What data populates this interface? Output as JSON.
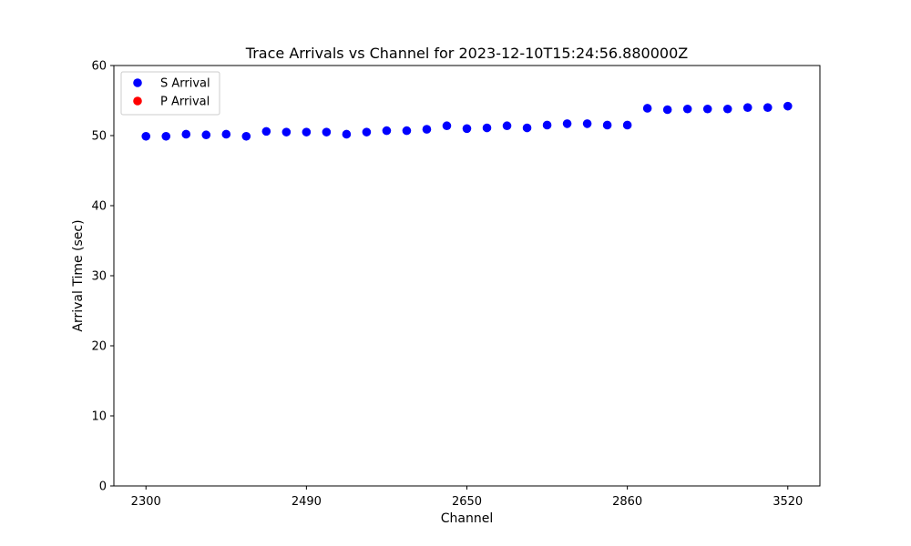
{
  "chart_data": {
    "type": "scatter",
    "title": "Trace Arrivals vs Channel for 2023-12-10T15:24:56.880000Z",
    "xlabel": "Channel",
    "ylabel": "Arrival Time (sec)",
    "ylim": [
      0,
      60
    ],
    "y_ticks": [
      0,
      10,
      20,
      30,
      40,
      50,
      60
    ],
    "x_tick_labels": [
      "2300",
      "2490",
      "2650",
      "2860",
      "3520"
    ],
    "x_tick_positions": [
      0,
      8,
      16,
      24,
      32
    ],
    "x_index_range": [
      -1.6,
      33.6
    ],
    "legend": {
      "placement": "top-left",
      "entries": [
        "S Arrival",
        "P Arrival"
      ]
    },
    "grid": false,
    "series": [
      {
        "name": "S Arrival",
        "color": "#0000ff",
        "x_index": [
          0,
          1,
          2,
          3,
          4,
          5,
          6,
          7,
          8,
          9,
          10,
          11,
          12,
          13,
          14,
          15,
          16,
          17,
          18,
          19,
          20,
          21,
          22,
          23,
          24,
          25,
          26,
          27,
          28,
          29,
          30,
          31,
          32
        ],
        "values": [
          49.9,
          49.9,
          50.2,
          50.1,
          50.2,
          49.9,
          50.6,
          50.5,
          50.5,
          50.5,
          50.2,
          50.5,
          50.7,
          50.7,
          50.9,
          51.4,
          51.0,
          51.1,
          51.4,
          51.1,
          51.5,
          51.7,
          51.7,
          51.5,
          51.5,
          53.9,
          53.7,
          53.8,
          53.8,
          53.8,
          54.0,
          54.0,
          54.2
        ]
      },
      {
        "name": "P Arrival",
        "color": "#ff0000",
        "x_index": [],
        "values": []
      }
    ]
  }
}
